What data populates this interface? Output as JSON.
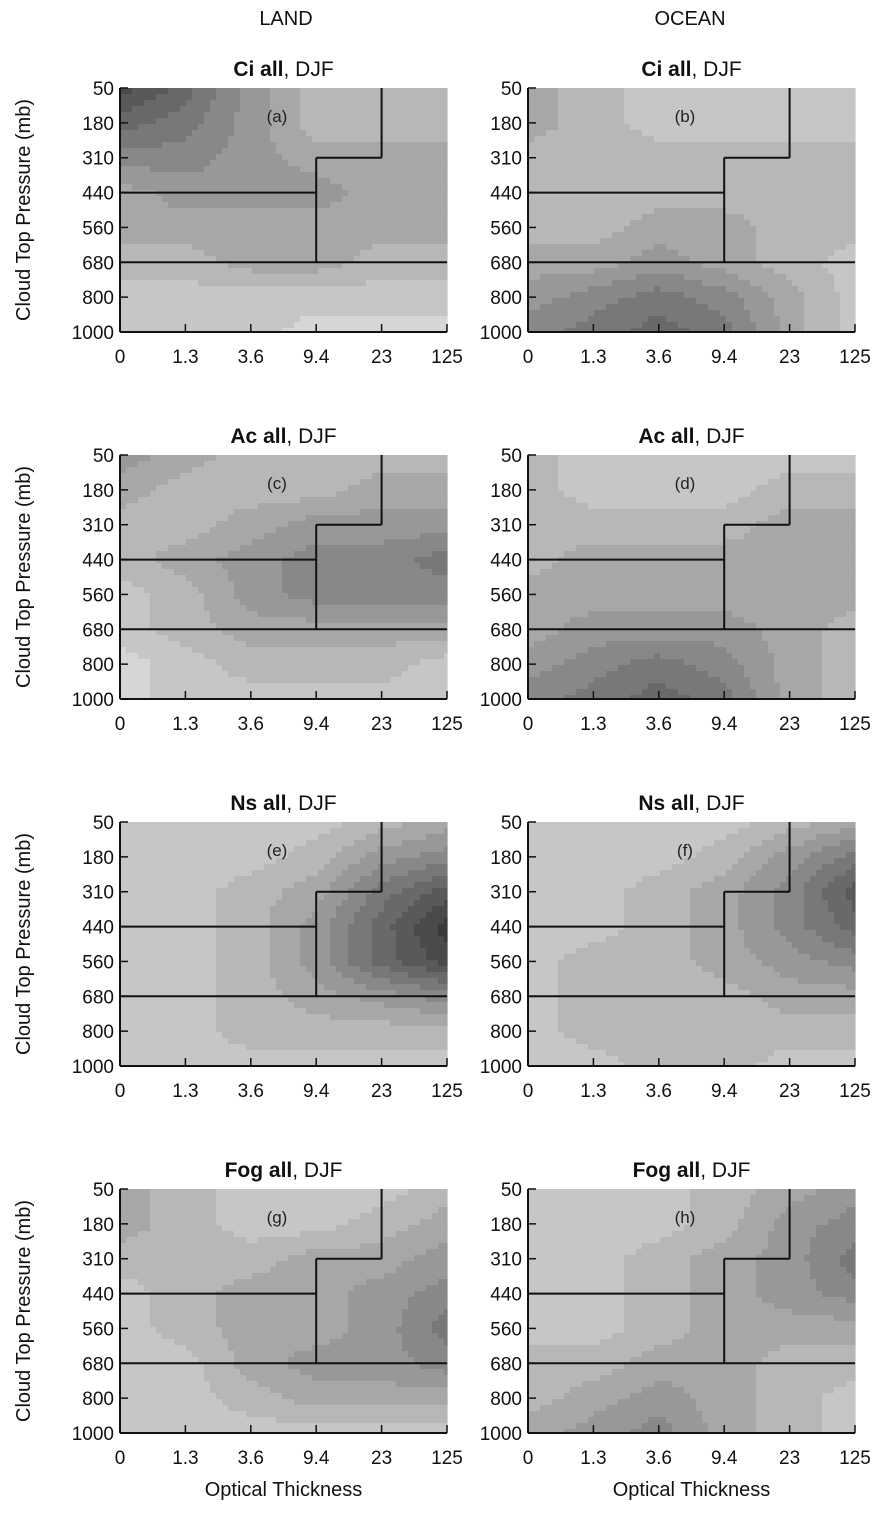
{
  "columns": [
    "LAND",
    "OCEAN"
  ],
  "shared_axes": {
    "ylabel": "Cloud Top Pressure (mb)",
    "xlabel": "Optical Thickness",
    "x_ticks": [
      "0",
      "1.3",
      "3.6",
      "9.4",
      "23",
      "125"
    ],
    "y_ticks": [
      "50",
      "180",
      "310",
      "440",
      "560",
      "680",
      "800",
      "1000"
    ]
  },
  "colors": {
    "frame": "#111111",
    "contour_light": "#d4d4d4",
    "contour_dark": "#3a3a3a"
  },
  "chart_data": [
    {
      "type": "heatmap",
      "panel": "(a)",
      "title_bold": "Ci all",
      "title_rest": ", DJF",
      "column": "LAND",
      "x_ticks": [
        "0",
        "1.3",
        "3.6",
        "9.4",
        "23",
        "125"
      ],
      "y_ticks": [
        "50",
        "180",
        "310",
        "440",
        "560",
        "680",
        "800",
        "1000"
      ],
      "ylabel": "Cloud Top Pressure (mb)",
      "xlabel": "",
      "values": [
        [
          9,
          7,
          4,
          2,
          2,
          2
        ],
        [
          7,
          6,
          4,
          2,
          2,
          2
        ],
        [
          5,
          5,
          4,
          3,
          3,
          3
        ],
        [
          3,
          4,
          4,
          4,
          3,
          3
        ],
        [
          3,
          3,
          3,
          3,
          3,
          3
        ],
        [
          2,
          2,
          3,
          3,
          2,
          2
        ],
        [
          1,
          1,
          1,
          1,
          1,
          1
        ],
        [
          1,
          1,
          1,
          0,
          0,
          0
        ]
      ]
    },
    {
      "type": "heatmap",
      "panel": "(b)",
      "title_bold": "Ci all",
      "title_rest": ", DJF",
      "column": "OCEAN",
      "x_ticks": [
        "0",
        "1.3",
        "3.6",
        "9.4",
        "23",
        "125"
      ],
      "y_ticks": [
        "50",
        "180",
        "310",
        "440",
        "560",
        "680",
        "800",
        "1000"
      ],
      "ylabel": "",
      "xlabel": "",
      "values": [
        [
          3,
          2,
          1,
          1,
          1,
          1
        ],
        [
          3,
          2,
          1,
          1,
          1,
          1
        ],
        [
          2,
          2,
          2,
          2,
          2,
          2
        ],
        [
          2,
          2,
          2,
          2,
          2,
          2
        ],
        [
          2,
          2,
          3,
          3,
          2,
          2
        ],
        [
          3,
          3,
          4,
          3,
          2,
          1
        ],
        [
          4,
          5,
          6,
          5,
          3,
          1
        ],
        [
          5,
          6,
          7,
          6,
          3,
          1
        ]
      ]
    },
    {
      "type": "heatmap",
      "panel": "(c)",
      "title_bold": "Ac all",
      "title_rest": ", DJF",
      "column": "LAND",
      "x_ticks": [
        "0",
        "1.3",
        "3.6",
        "9.4",
        "23",
        "125"
      ],
      "y_ticks": [
        "50",
        "180",
        "310",
        "440",
        "560",
        "680",
        "800",
        "1000"
      ],
      "ylabel": "Cloud Top Pressure (mb)",
      "xlabel": "",
      "values": [
        [
          4,
          3,
          2,
          2,
          2,
          2
        ],
        [
          3,
          2,
          2,
          2,
          3,
          3
        ],
        [
          2,
          2,
          3,
          4,
          4,
          4
        ],
        [
          2,
          3,
          4,
          5,
          5,
          6
        ],
        [
          1,
          2,
          4,
          5,
          5,
          5
        ],
        [
          1,
          2,
          3,
          3,
          3,
          3
        ],
        [
          0,
          1,
          2,
          2,
          2,
          1
        ],
        [
          0,
          1,
          1,
          1,
          1,
          1
        ]
      ]
    },
    {
      "type": "heatmap",
      "panel": "(d)",
      "title_bold": "Ac all",
      "title_rest": ", DJF",
      "column": "OCEAN",
      "x_ticks": [
        "0",
        "1.3",
        "3.6",
        "9.4",
        "23",
        "125"
      ],
      "y_ticks": [
        "50",
        "180",
        "310",
        "440",
        "560",
        "680",
        "800",
        "1000"
      ],
      "ylabel": "",
      "xlabel": "",
      "values": [
        [
          2,
          1,
          1,
          1,
          1,
          1
        ],
        [
          2,
          1,
          1,
          1,
          2,
          2
        ],
        [
          2,
          2,
          2,
          2,
          3,
          3
        ],
        [
          2,
          3,
          3,
          3,
          3,
          3
        ],
        [
          3,
          3,
          3,
          3,
          3,
          3
        ],
        [
          3,
          4,
          4,
          4,
          3,
          2
        ],
        [
          4,
          5,
          6,
          5,
          3,
          2
        ],
        [
          5,
          6,
          7,
          6,
          3,
          2
        ]
      ]
    },
    {
      "type": "heatmap",
      "panel": "(e)",
      "title_bold": "Ns all",
      "title_rest": ", DJF",
      "column": "LAND",
      "x_ticks": [
        "0",
        "1.3",
        "3.6",
        "9.4",
        "23",
        "125"
      ],
      "y_ticks": [
        "50",
        "180",
        "310",
        "440",
        "560",
        "680",
        "800",
        "1000"
      ],
      "ylabel": "Cloud Top Pressure (mb)",
      "xlabel": "",
      "values": [
        [
          1,
          1,
          1,
          1,
          2,
          3
        ],
        [
          1,
          1,
          1,
          2,
          4,
          5
        ],
        [
          1,
          1,
          2,
          3,
          6,
          8
        ],
        [
          1,
          1,
          2,
          4,
          7,
          10
        ],
        [
          1,
          1,
          2,
          4,
          7,
          9
        ],
        [
          1,
          1,
          2,
          3,
          4,
          5
        ],
        [
          1,
          1,
          2,
          2,
          2,
          2
        ],
        [
          1,
          1,
          1,
          1,
          1,
          1
        ]
      ]
    },
    {
      "type": "heatmap",
      "panel": "(f)",
      "title_bold": "Ns all",
      "title_rest": ", DJF",
      "column": "OCEAN",
      "x_ticks": [
        "0",
        "1.3",
        "3.6",
        "9.4",
        "23",
        "125"
      ],
      "y_ticks": [
        "50",
        "180",
        "310",
        "440",
        "560",
        "680",
        "800",
        "1000"
      ],
      "ylabel": "",
      "xlabel": "",
      "values": [
        [
          1,
          1,
          1,
          1,
          2,
          3
        ],
        [
          1,
          1,
          1,
          2,
          4,
          6
        ],
        [
          1,
          1,
          2,
          3,
          5,
          8
        ],
        [
          1,
          1,
          2,
          3,
          5,
          7
        ],
        [
          1,
          2,
          2,
          3,
          4,
          5
        ],
        [
          1,
          2,
          2,
          2,
          3,
          3
        ],
        [
          1,
          2,
          2,
          2,
          2,
          2
        ],
        [
          1,
          1,
          2,
          2,
          1,
          1
        ]
      ]
    },
    {
      "type": "heatmap",
      "panel": "(g)",
      "title_bold": "Fog all",
      "title_rest": ", DJF",
      "column": "LAND",
      "x_ticks": [
        "0",
        "1.3",
        "3.6",
        "9.4",
        "23",
        "125"
      ],
      "y_ticks": [
        "50",
        "180",
        "310",
        "440",
        "560",
        "680",
        "800",
        "1000"
      ],
      "ylabel": "Cloud Top Pressure (mb)",
      "xlabel": "Optical Thickness",
      "values": [
        [
          3,
          2,
          1,
          1,
          1,
          2
        ],
        [
          3,
          2,
          1,
          1,
          2,
          3
        ],
        [
          2,
          2,
          2,
          3,
          3,
          4
        ],
        [
          1,
          2,
          3,
          3,
          4,
          5
        ],
        [
          1,
          2,
          3,
          3,
          4,
          6
        ],
        [
          1,
          1,
          3,
          4,
          4,
          5
        ],
        [
          1,
          1,
          2,
          3,
          3,
          3
        ],
        [
          1,
          1,
          1,
          1,
          1,
          1
        ]
      ]
    },
    {
      "type": "heatmap",
      "panel": "(h)",
      "title_bold": "Fog all",
      "title_rest": ", DJF",
      "column": "OCEAN",
      "x_ticks": [
        "0",
        "1.3",
        "3.6",
        "9.4",
        "23",
        "125"
      ],
      "y_ticks": [
        "50",
        "180",
        "310",
        "440",
        "560",
        "680",
        "800",
        "1000"
      ],
      "ylabel": "",
      "xlabel": "Optical Thickness",
      "values": [
        [
          1,
          1,
          1,
          2,
          3,
          4
        ],
        [
          1,
          1,
          1,
          2,
          4,
          5
        ],
        [
          1,
          1,
          2,
          3,
          4,
          6
        ],
        [
          1,
          1,
          2,
          3,
          4,
          5
        ],
        [
          1,
          1,
          2,
          3,
          3,
          3
        ],
        [
          2,
          2,
          3,
          3,
          2,
          2
        ],
        [
          2,
          3,
          4,
          3,
          2,
          1
        ],
        [
          3,
          4,
          5,
          3,
          2,
          1
        ]
      ]
    }
  ]
}
